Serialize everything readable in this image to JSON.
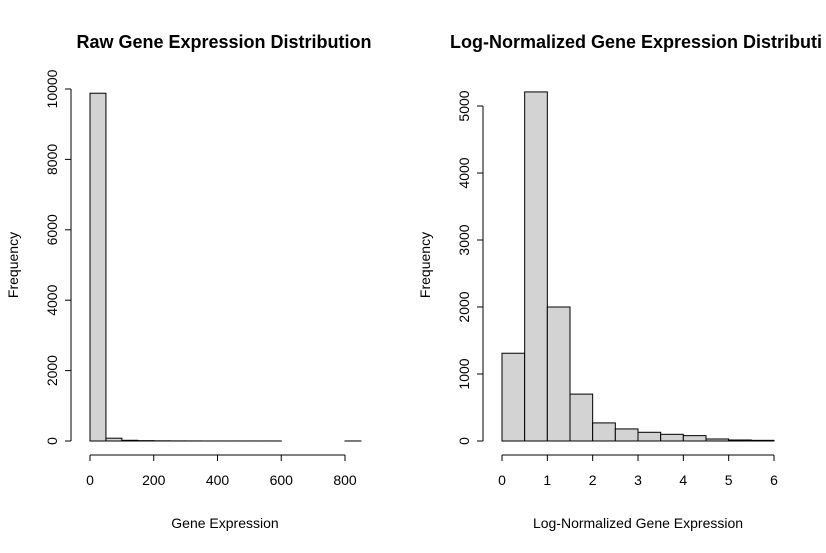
{
  "chart_data": [
    {
      "type": "bar",
      "title": "Raw Gene Expression Distribution",
      "xlabel": "Gene Expression",
      "ylabel": "Frequency",
      "xlim": [
        0,
        850
      ],
      "ylim": [
        0,
        10000
      ],
      "x_ticks": [
        0,
        200,
        400,
        600,
        800
      ],
      "y_ticks": [
        0,
        2000,
        4000,
        6000,
        8000,
        10000
      ],
      "bin_edges": [
        0,
        50,
        100,
        150,
        200,
        250,
        300,
        350,
        400,
        450,
        500,
        550,
        600,
        650,
        700,
        750,
        800,
        850
      ],
      "values": [
        9880,
        80,
        20,
        10,
        5,
        3,
        2,
        1,
        1,
        1,
        1,
        1,
        0,
        0,
        0,
        0,
        1
      ]
    },
    {
      "type": "bar",
      "title": "Log-Normalized Gene Expression Distributi",
      "xlabel": "Log-Normalized Gene Expression",
      "ylabel": "Frequency",
      "xlim": [
        0,
        6
      ],
      "ylim": [
        0,
        5200
      ],
      "x_ticks": [
        0,
        1,
        2,
        3,
        4,
        5,
        6
      ],
      "y_ticks": [
        0,
        1000,
        2000,
        3000,
        4000,
        5000
      ],
      "bin_edges": [
        0,
        0.5,
        1,
        1.5,
        2,
        2.5,
        3,
        3.5,
        4,
        4.5,
        5,
        5.5,
        6
      ],
      "values": [
        1310,
        5210,
        2000,
        700,
        270,
        180,
        130,
        100,
        80,
        30,
        15,
        10
      ]
    }
  ]
}
